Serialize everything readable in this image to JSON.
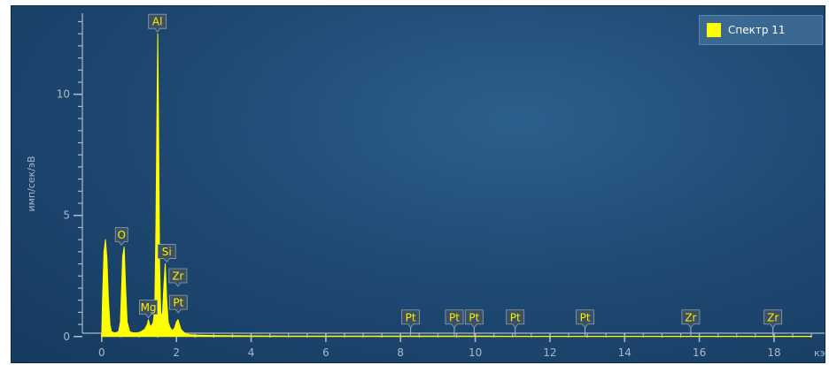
{
  "chart_data": {
    "type": "line",
    "xlabel": "кэ",
    "ylabel": "имп/сек/эВ",
    "xlim": [
      -0.4,
      19.4
    ],
    "ylim": [
      -0.3,
      13.2
    ],
    "x_ticks": [
      "0",
      "2",
      "4",
      "6",
      "8",
      "10",
      "12",
      "14",
      "16",
      "18"
    ],
    "y_ticks": [
      "0",
      "5",
      "10"
    ],
    "grid": false,
    "legend_position": "top-right",
    "series": [
      {
        "name": "Спектр 11",
        "color": "#ffff00",
        "x": [
          0,
          0.02,
          0.06,
          0.1,
          0.14,
          0.18,
          0.22,
          0.26,
          0.35,
          0.45,
          0.5,
          0.52,
          0.56,
          0.6,
          0.64,
          0.68,
          0.75,
          0.85,
          0.95,
          1.05,
          1.15,
          1.22,
          1.25,
          1.28,
          1.32,
          1.38,
          1.42,
          1.45,
          1.48,
          1.5,
          1.52,
          1.55,
          1.58,
          1.62,
          1.66,
          1.7,
          1.74,
          1.78,
          1.82,
          1.86,
          1.9,
          1.95,
          2.0,
          2.04,
          2.08,
          2.12,
          2.18,
          2.25,
          2.35,
          2.5,
          3,
          4,
          5,
          6,
          7,
          8,
          9,
          10,
          11,
          12,
          13,
          14,
          15,
          16,
          17,
          18,
          19
        ],
        "y": [
          0,
          1.5,
          3.5,
          4.0,
          3.2,
          1.5,
          0.5,
          0.2,
          0.15,
          0.2,
          0.6,
          1.5,
          3.3,
          3.7,
          2.0,
          0.6,
          0.2,
          0.15,
          0.15,
          0.2,
          0.3,
          0.5,
          0.7,
          0.5,
          0.4,
          0.6,
          1.2,
          4.5,
          9.5,
          12.5,
          9.0,
          3.0,
          1.0,
          0.8,
          2.0,
          3.0,
          1.5,
          0.6,
          0.4,
          0.3,
          0.25,
          0.35,
          0.6,
          0.7,
          0.5,
          0.3,
          0.2,
          0.12,
          0.08,
          0.06,
          0.04,
          0.03,
          0.02,
          0.02,
          0.02,
          0.02,
          0.02,
          0.02,
          0.01,
          0.01,
          0.01,
          0.01,
          0.01,
          0.01,
          0.01,
          0.01,
          0.01
        ]
      }
    ],
    "element_labels": [
      {
        "text": "Al",
        "x": 1.49,
        "y": 12.5
      },
      {
        "text": "O",
        "x": 0.53,
        "y": 3.7
      },
      {
        "text": "Si",
        "x": 1.74,
        "y": 3.0
      },
      {
        "text": "Zr",
        "x": 2.04,
        "y": 2.0
      },
      {
        "text": "Pt",
        "x": 2.05,
        "y": 0.9
      },
      {
        "text": "Mg",
        "x": 1.25,
        "y": 0.7
      },
      {
        "text": "Pt",
        "x": 8.27,
        "y": 0
      },
      {
        "text": "Pt",
        "x": 9.44,
        "y": 0
      },
      {
        "text": "Pt",
        "x": 9.97,
        "y": 0
      },
      {
        "text": "Pt",
        "x": 11.07,
        "y": 0
      },
      {
        "text": "Pt",
        "x": 12.94,
        "y": 0
      },
      {
        "text": "Zr",
        "x": 15.77,
        "y": 0
      },
      {
        "text": "Zr",
        "x": 17.97,
        "y": 0
      }
    ]
  }
}
